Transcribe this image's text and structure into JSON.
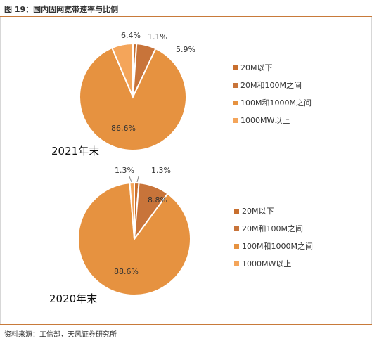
{
  "header": {
    "title": "图 19：国内固网宽带速率与比例"
  },
  "footer": {
    "source": "资料来源：工信部，天风证券研究所"
  },
  "chart_data": [
    {
      "type": "pie",
      "title": "2021年末",
      "categories": [
        "20M以下",
        "20M和100M之间",
        "100M和1000M之间",
        "1000MW以上"
      ],
      "values": [
        1.1,
        5.9,
        86.6,
        6.4
      ],
      "labels": [
        "1.1%",
        "5.9%",
        "86.6%",
        "6.4%"
      ],
      "colors": [
        "#c86f2e",
        "#c8743a",
        "#e69240",
        "#f4a55a"
      ],
      "legend_position": "right"
    },
    {
      "type": "pie",
      "title": "2020年末",
      "categories": [
        "20M以下",
        "20M和100M之间",
        "100M和1000M之间",
        "1000MW以上"
      ],
      "values": [
        1.3,
        8.8,
        88.6,
        1.3
      ],
      "labels": [
        "1.3%",
        "8.8%",
        "88.6%",
        "1.3%"
      ],
      "colors": [
        "#c86f2e",
        "#c8743a",
        "#e69240",
        "#f4a55a"
      ],
      "legend_position": "right"
    }
  ]
}
